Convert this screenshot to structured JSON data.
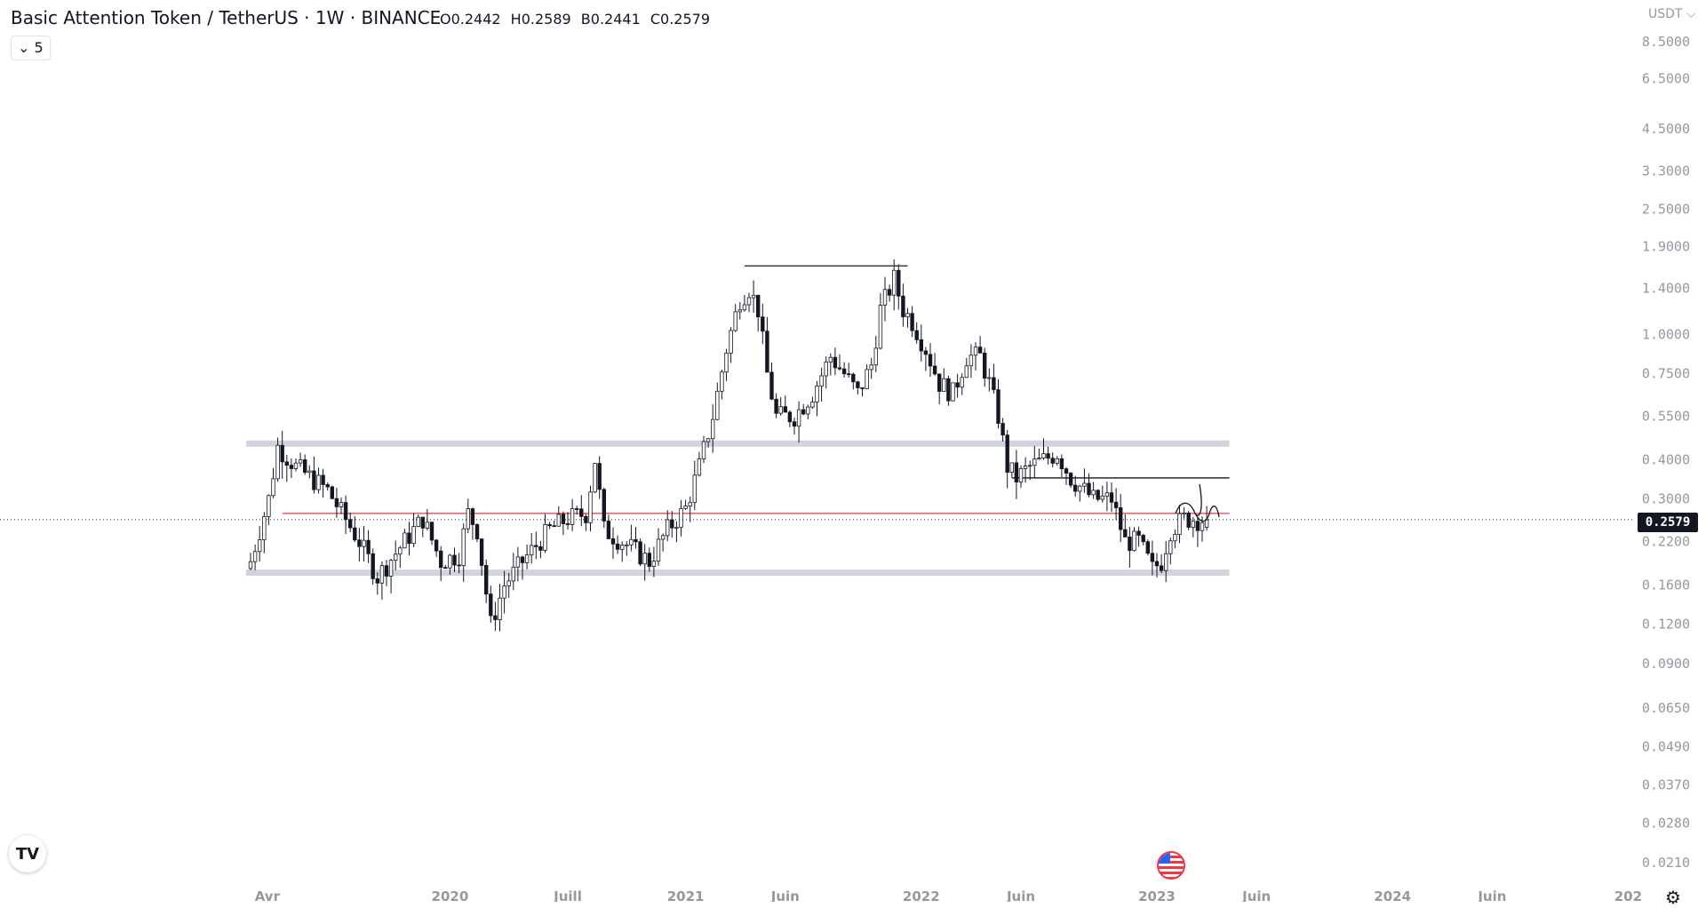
{
  "header": {
    "title": "Basic Attention Token / TetherUS · 1W · BINANCE",
    "ohlc": {
      "open": "O0.2442",
      "high": "H0.2589",
      "low": "B0.2441",
      "close": "C0.2579"
    },
    "collapse_label": "5"
  },
  "price_axis": {
    "currency": "USDT ⌵",
    "current_price": "0.2579",
    "ticks": [
      "8.5000",
      "6.5000",
      "4.5000",
      "3.3000",
      "2.5000",
      "1.9000",
      "1.4000",
      "1.0000",
      "0.7500",
      "0.5500",
      "0.4000",
      "0.3000",
      "0.2200",
      "0.1600",
      "0.1200",
      "0.0900",
      "0.0650",
      "0.0490",
      "0.0370",
      "0.0280",
      "0.0210"
    ]
  },
  "time_axis": {
    "labels": [
      {
        "text": "Avr",
        "week": 3.7
      },
      {
        "text": "2020",
        "week": 44
      },
      {
        "text": "Juill",
        "week": 70
      },
      {
        "text": "2021",
        "week": 96
      },
      {
        "text": "Juin",
        "week": 118
      },
      {
        "text": "2022",
        "week": 148
      },
      {
        "text": "Juin",
        "week": 170
      },
      {
        "text": "2023",
        "week": 200
      },
      {
        "text": "Juin",
        "week": 222
      },
      {
        "text": "2024",
        "week": 252
      },
      {
        "text": "Juin",
        "week": 274
      },
      {
        "text": "202",
        "week": 304
      }
    ]
  },
  "chart_data": {
    "type": "candlestick",
    "title": "Basic Attention Token / TetherUS · 1W · BINANCE",
    "x_unit": "weeks since 2019-03-18",
    "y_scale": "log",
    "ylim": [
      0.021,
      8.5
    ],
    "last": {
      "open": 0.2442,
      "high": 0.2589,
      "low": 0.2441,
      "close": 0.2579
    },
    "close_keyframes": [
      [
        0,
        0.19
      ],
      [
        4,
        0.3
      ],
      [
        6,
        0.44
      ],
      [
        10,
        0.38
      ],
      [
        17,
        0.32
      ],
      [
        24,
        0.22
      ],
      [
        28,
        0.17
      ],
      [
        34,
        0.22
      ],
      [
        38,
        0.26
      ],
      [
        42,
        0.19
      ],
      [
        46,
        0.2
      ],
      [
        48,
        0.27
      ],
      [
        50,
        0.24
      ],
      [
        53,
        0.12
      ],
      [
        56,
        0.16
      ],
      [
        60,
        0.19
      ],
      [
        66,
        0.24
      ],
      [
        70,
        0.26
      ],
      [
        74,
        0.27
      ],
      [
        76,
        0.4
      ],
      [
        78,
        0.24
      ],
      [
        84,
        0.21
      ],
      [
        88,
        0.19
      ],
      [
        92,
        0.24
      ],
      [
        96,
        0.28
      ],
      [
        99,
        0.38
      ],
      [
        102,
        0.55
      ],
      [
        105,
        0.9
      ],
      [
        108,
        1.3
      ],
      [
        110,
        1.4
      ],
      [
        112,
        1.2
      ],
      [
        114,
        0.75
      ],
      [
        116,
        0.55
      ],
      [
        120,
        0.55
      ],
      [
        124,
        0.65
      ],
      [
        128,
        0.85
      ],
      [
        131,
        0.75
      ],
      [
        134,
        0.65
      ],
      [
        137,
        0.8
      ],
      [
        139,
        1.2
      ],
      [
        142,
        1.5
      ],
      [
        144,
        1.2
      ],
      [
        146,
        1.1
      ],
      [
        149,
        0.9
      ],
      [
        152,
        0.7
      ],
      [
        155,
        0.65
      ],
      [
        158,
        0.85
      ],
      [
        161,
        0.85
      ],
      [
        163,
        0.7
      ],
      [
        165,
        0.55
      ],
      [
        167,
        0.38
      ],
      [
        169,
        0.35
      ],
      [
        172,
        0.38
      ],
      [
        178,
        0.42
      ],
      [
        181,
        0.35
      ],
      [
        186,
        0.3
      ],
      [
        190,
        0.3
      ],
      [
        193,
        0.22
      ],
      [
        196,
        0.22
      ],
      [
        199,
        0.18
      ],
      [
        201,
        0.19
      ],
      [
        203,
        0.24
      ],
      [
        206,
        0.26
      ],
      [
        211,
        0.2579
      ]
    ],
    "drawings": [
      {
        "kind": "zone",
        "price": 0.45,
        "from_week": -1,
        "to_week": 216,
        "color": "#d1d4dc"
      },
      {
        "kind": "zone",
        "price": 0.175,
        "from_week": -1,
        "to_week": 216,
        "color": "#d1d4dc"
      },
      {
        "kind": "line",
        "price": 0.27,
        "from_week": 7,
        "to_week": 216,
        "color": "#f23645"
      },
      {
        "kind": "line",
        "price": 1.65,
        "from_week": 109,
        "to_week": 145,
        "color": "#131722"
      },
      {
        "kind": "line",
        "price": 0.35,
        "from_week": 168,
        "to_week": 216,
        "color": "#131722"
      }
    ],
    "colors": {
      "up": "#ffffff",
      "down": "#131722",
      "border": "#131722"
    }
  }
}
